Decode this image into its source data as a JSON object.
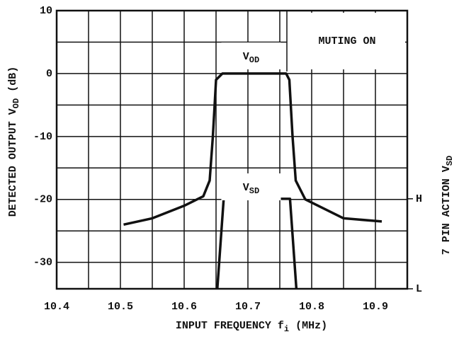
{
  "chart_data": {
    "type": "line",
    "x_label": {
      "text": "INPUT FREQUENCY  f",
      "sub": "i",
      "suffix": " (MHz)"
    },
    "y_label": {
      "text": "DETECTED OUTPUT  V",
      "sub": "OD",
      "suffix": " (dB)"
    },
    "y2_label": {
      "text": "7 PIN ACTION  V",
      "sub": "SD"
    },
    "annotations": [
      "MUTING ON"
    ],
    "xlim": [
      10.4,
      10.95
    ],
    "xticks": [
      10.4,
      10.5,
      10.6,
      10.7,
      10.8,
      10.9
    ],
    "xgrid": [
      10.45,
      10.55,
      10.65,
      10.75,
      10.85
    ],
    "ylim": [
      -34.2,
      10
    ],
    "yticks": [
      10,
      0,
      -10,
      -20,
      -30
    ],
    "ygrid": [
      5,
      -5,
      -15,
      -25
    ],
    "y2lim": [
      0,
      3.09
    ],
    "y2ticks": [
      {
        "value": 1,
        "label": "H"
      },
      {
        "value": 0,
        "label": "L"
      }
    ],
    "grid": true,
    "series": [
      {
        "label": {
          "text": "V",
          "sub": "OD"
        },
        "color": "#111111",
        "x": [
          10.505,
          10.55,
          10.6,
          10.63,
          10.64,
          10.645,
          10.65,
          10.66,
          10.76,
          10.765,
          10.77,
          10.775,
          10.79,
          10.85,
          10.91
        ],
        "values": [
          -24,
          -23,
          -21,
          -19.5,
          -17,
          -10,
          -1,
          0,
          0,
          -1,
          -10,
          -17,
          -20,
          -23,
          -23.5
        ]
      },
      {
        "label": {
          "text": "V",
          "sub": "SD"
        },
        "color": "#111111",
        "axis": "y2",
        "x": [
          10.652,
          10.662,
          10.766,
          10.776
        ],
        "values": [
          0,
          1,
          1,
          0
        ]
      }
    ]
  }
}
